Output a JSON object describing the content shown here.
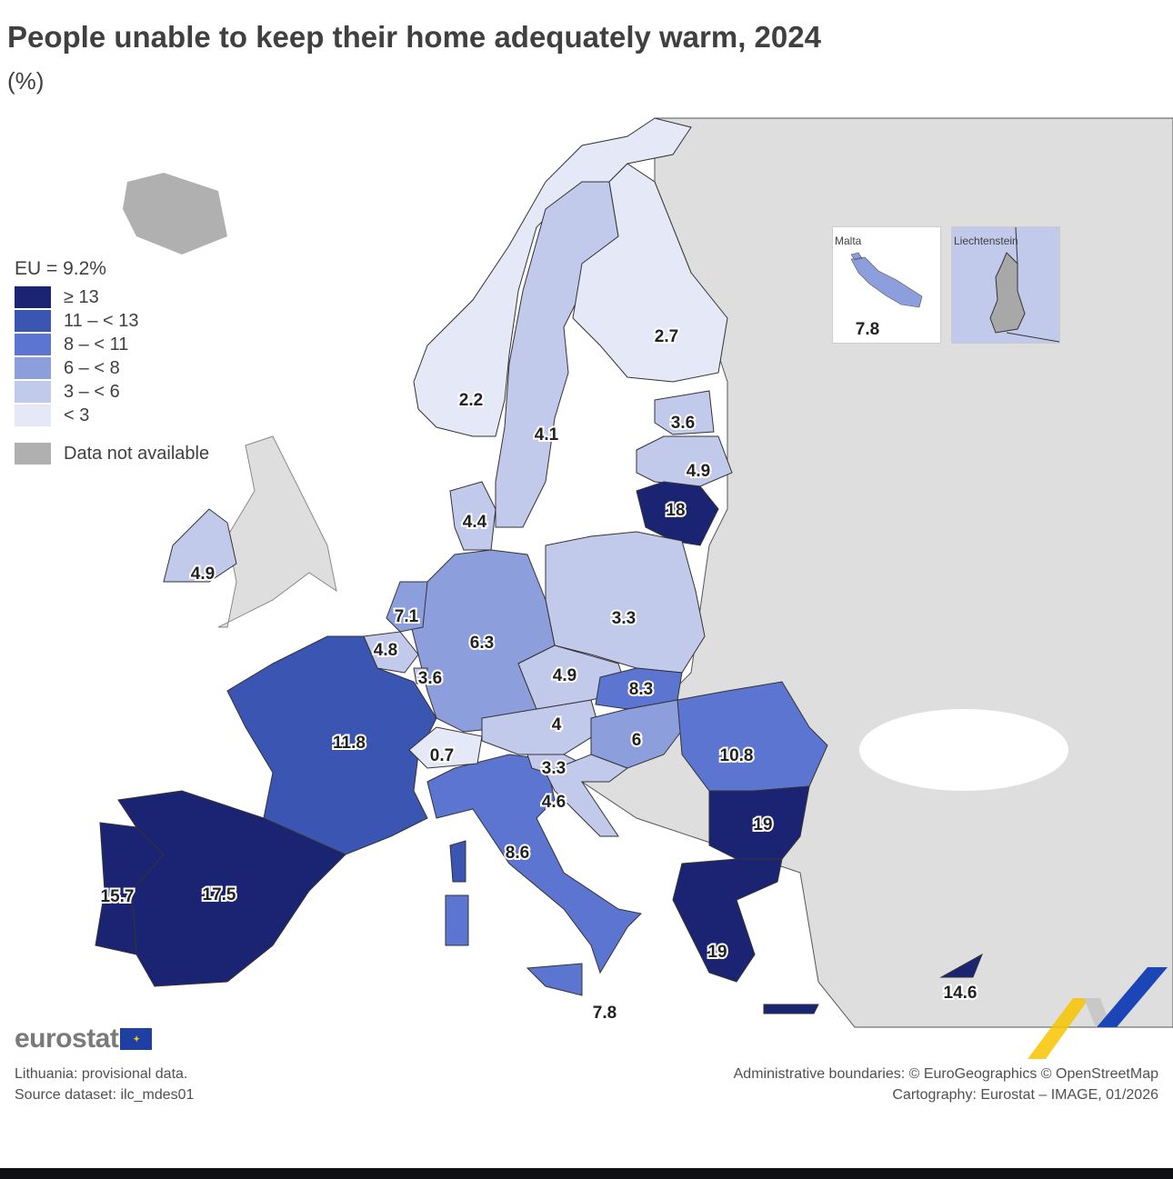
{
  "title": "People unable to keep their home adequately warm, 2024",
  "unit": "(%)",
  "legend": {
    "eu_value": "EU = 9.2%",
    "classes": [
      {
        "label": "≥ 13",
        "color": "#1b2472"
      },
      {
        "label": "11 – < 13",
        "color": "#3a55b2"
      },
      {
        "label": "8 – < 11",
        "color": "#5c75d1"
      },
      {
        "label": "6 – < 8",
        "color": "#8d9edd"
      },
      {
        "label": "3 – < 6",
        "color": "#c2caeb"
      },
      {
        "label": "< 3",
        "color": "#e5e8f6"
      }
    ],
    "not_available": {
      "label": "Data not available",
      "color": "#b0b0b0"
    }
  },
  "colors": {
    "non_eu_land": "#dedede",
    "sea": "#ffffff"
  },
  "regions": [
    {
      "id": "no",
      "value": 2.2
    },
    {
      "id": "se",
      "value": 4.1
    },
    {
      "id": "fi",
      "value": 2.7
    },
    {
      "id": "ee",
      "value": 3.6
    },
    {
      "id": "lv",
      "value": 4.9
    },
    {
      "id": "lt",
      "value": 18
    },
    {
      "id": "pl",
      "value": 3.3
    },
    {
      "id": "de",
      "value": 6.3
    },
    {
      "id": "dk",
      "value": 4.4
    },
    {
      "id": "nl",
      "value": 7.1
    },
    {
      "id": "be",
      "value": 4.8
    },
    {
      "id": "lu",
      "value": 3.6
    },
    {
      "id": "fr",
      "value": 11.8
    },
    {
      "id": "es",
      "value": 17.5
    },
    {
      "id": "pt",
      "value": 15.7
    },
    {
      "id": "it",
      "value": 8.6
    },
    {
      "id": "ch",
      "value": 0.7
    },
    {
      "id": "at",
      "value": 4
    },
    {
      "id": "cz",
      "value": 4.9
    },
    {
      "id": "sk",
      "value": 8.3
    },
    {
      "id": "hu",
      "value": 6
    },
    {
      "id": "si",
      "value": 3.3
    },
    {
      "id": "hr",
      "value": 4.6
    },
    {
      "id": "ro",
      "value": 10.8
    },
    {
      "id": "bg",
      "value": 19
    },
    {
      "id": "el",
      "value": 19
    },
    {
      "id": "cy",
      "value": 14.6
    },
    {
      "id": "ie",
      "value": 4.9
    },
    {
      "id": "mt",
      "value": 7.8
    }
  ],
  "labels": {
    "no": "2.2",
    "se": "4.1",
    "fi": "2.7",
    "ee": "3.6",
    "lv": "4.9",
    "lt": "18",
    "pl": "3.3",
    "de": "6.3",
    "dk": "4.4",
    "nl": "7.1",
    "be": "4.8",
    "lu": "3.6",
    "fr": "11.8",
    "es": "17.5",
    "pt": "15.7",
    "it": "8.6",
    "ch": "0.7",
    "at": "4",
    "cz": "4.9",
    "sk": "8.3",
    "hu": "6",
    "si": "3.3",
    "hr": "4.6",
    "ro": "10.8",
    "bg": "19",
    "el": "19",
    "cy": "14.6",
    "ie": "4.9",
    "mt": "7.8",
    "mt_main": "7.8"
  },
  "insets": {
    "malta": "Malta",
    "liechtenstein": "Liechtenstein"
  },
  "logo": "eurostat",
  "footer": {
    "note": "Lithuania: provisional data.",
    "source": "Source dataset: ilc_mdes01",
    "boundaries": "Administrative boundaries: © EuroGeographics © OpenStreetMap",
    "cartography": "Cartography: Eurostat – IMAGE, 01/2026"
  }
}
